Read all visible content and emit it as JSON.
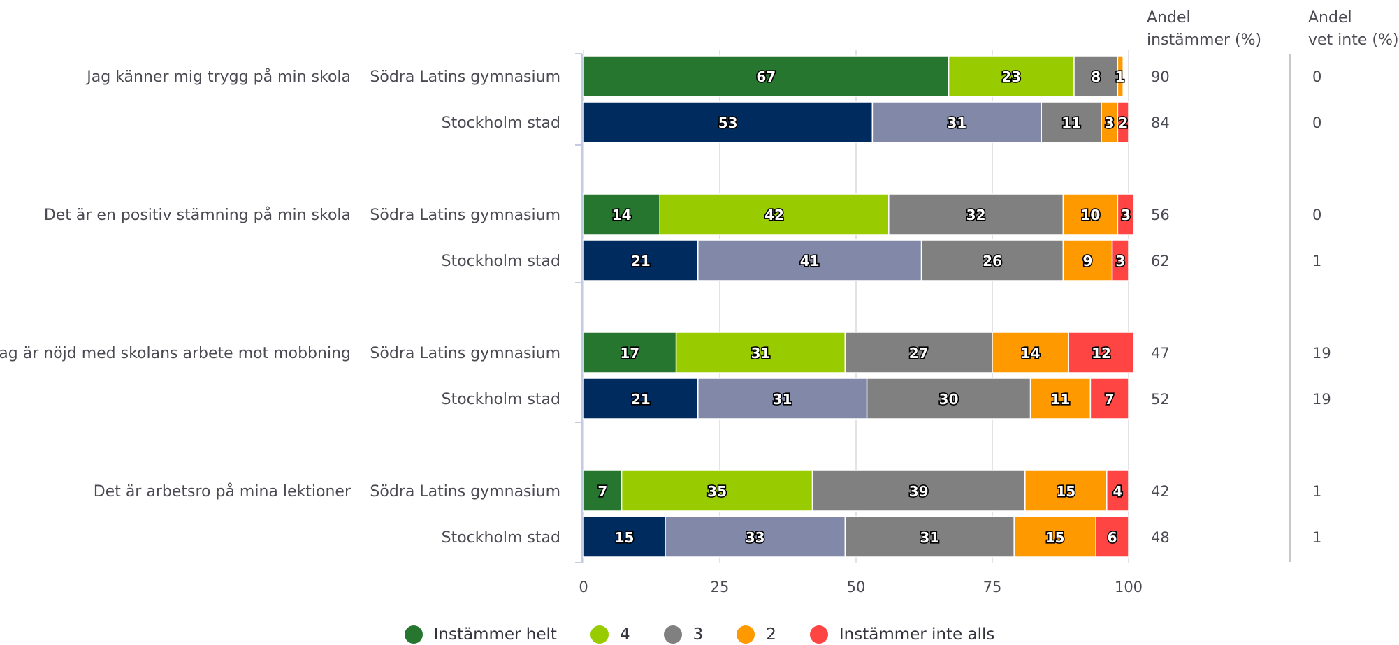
{
  "chart_data": {
    "type": "bar",
    "orientation": "horizontal-stacked",
    "xlim": [
      0,
      100
    ],
    "xticks": [
      0,
      25,
      50,
      75,
      100
    ],
    "columns": {
      "andel_header": [
        "Andel",
        "instämmer (%)"
      ],
      "vetinte_header": [
        "Andel",
        "vet inte (%)"
      ]
    },
    "legend": [
      {
        "label": "Instämmer helt",
        "color": "#267630"
      },
      {
        "label": "4",
        "color": "#99cc00"
      },
      {
        "label": "3",
        "color": "#808080"
      },
      {
        "label": "2",
        "color": "#ff9900"
      },
      {
        "label": "Instämmer inte alls",
        "color": "#ff4444"
      }
    ],
    "stockholm_colors": [
      "#002b5f",
      "#8289a8",
      "#808080",
      "#ff9900",
      "#ff4444"
    ],
    "questions": [
      {
        "question": "Jag känner mig trygg på min skola",
        "rows": [
          {
            "group": "Södra Latins gymnasium",
            "values": [
              67,
              23,
              8,
              1,
              0
            ],
            "labels": [
              "67",
              "23",
              "8",
              "1",
              "0"
            ],
            "andel": "90",
            "vet_inte": "0"
          },
          {
            "group": "Stockholm stad",
            "values": [
              53,
              31,
              11,
              3,
              2
            ],
            "labels": [
              "53",
              "31",
              "11",
              "3",
              "2"
            ],
            "andel": "84",
            "vet_inte": "0"
          }
        ]
      },
      {
        "question": "Det är en positiv stämning på min skola",
        "rows": [
          {
            "group": "Södra Latins gymnasium",
            "values": [
              14,
              42,
              32,
              10,
              3
            ],
            "labels": [
              "14",
              "42",
              "32",
              "10",
              "3"
            ],
            "andel": "56",
            "vet_inte": "0"
          },
          {
            "group": "Stockholm stad",
            "values": [
              21,
              41,
              26,
              9,
              3
            ],
            "labels": [
              "21",
              "41",
              "26",
              "9",
              "3"
            ],
            "andel": "62",
            "vet_inte": "1"
          }
        ]
      },
      {
        "question": "Jag är nöjd med skolans arbete mot mobbning",
        "rows": [
          {
            "group": "Södra Latins gymnasium",
            "values": [
              17,
              31,
              27,
              14,
              12
            ],
            "labels": [
              "17",
              "31",
              "27",
              "14",
              "12"
            ],
            "andel": "47",
            "vet_inte": "19"
          },
          {
            "group": "Stockholm stad",
            "values": [
              21,
              31,
              30,
              11,
              7
            ],
            "labels": [
              "21",
              "31",
              "30",
              "11",
              "7"
            ],
            "andel": "52",
            "vet_inte": "19"
          }
        ]
      },
      {
        "question": "Det är arbetsro på mina lektioner",
        "rows": [
          {
            "group": "Södra Latins gymnasium",
            "values": [
              7,
              35,
              39,
              15,
              4
            ],
            "labels": [
              "7",
              "35",
              "39",
              "15",
              "4"
            ],
            "andel": "42",
            "vet_inte": "1"
          },
          {
            "group": "Stockholm stad",
            "values": [
              15,
              33,
              31,
              15,
              6
            ],
            "labels": [
              "15",
              "33",
              "31",
              "15",
              "6"
            ],
            "andel": "48",
            "vet_inte": "1"
          }
        ]
      }
    ]
  }
}
